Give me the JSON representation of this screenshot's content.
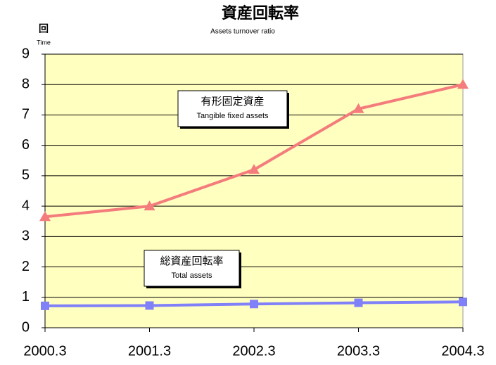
{
  "chart_data": {
    "type": "line",
    "title": "資産回転率",
    "subtitle": "Assets turnover ratio",
    "y_label": "回",
    "y_label_en": "Time",
    "categories": [
      "2000.3",
      "2001.3",
      "2002.3",
      "2003.3",
      "2004.3"
    ],
    "series": [
      {
        "name": "有形固定資産",
        "name_en": "Tangible fixed assets",
        "color": "#f47c7c",
        "marker": "triangle",
        "values": [
          3.65,
          4.0,
          5.2,
          7.2,
          8.0
        ]
      },
      {
        "name": "総資産回転率",
        "name_en": "Total assets",
        "color": "#8080f8",
        "marker": "square",
        "values": [
          0.72,
          0.73,
          0.78,
          0.82,
          0.85
        ]
      }
    ],
    "ylim": [
      0,
      9
    ],
    "yticks": [
      0,
      1,
      2,
      3,
      4,
      5,
      6,
      7,
      8,
      9
    ],
    "grid": true,
    "plot_background": "#ffffc0"
  }
}
